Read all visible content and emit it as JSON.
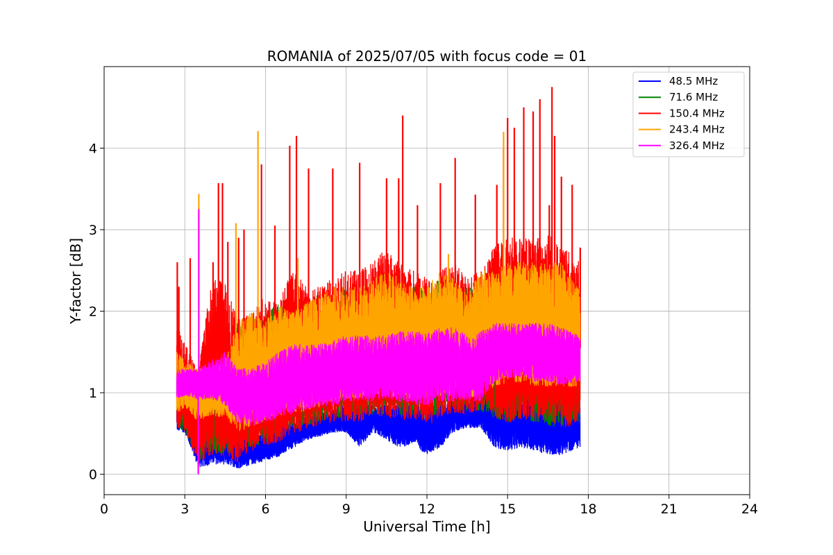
{
  "chart_data": {
    "type": "line",
    "title": "ROMANIA of 2025/07/05 with focus code = 01",
    "xlabel": "Universal Time [h]",
    "ylabel": "Y-factor [dB]",
    "xlim": [
      0,
      24
    ],
    "ylim": [
      -0.25,
      5.0
    ],
    "xticks": [
      "0",
      "3",
      "6",
      "9",
      "12",
      "15",
      "18",
      "21",
      "24"
    ],
    "yticks": [
      "0",
      "1",
      "2",
      "3",
      "4"
    ],
    "grid": true,
    "legend_position": "top-right",
    "series": [
      {
        "name": "  48.5 MHz",
        "color": "#0000ff",
        "x": [
          2.7,
          3.0,
          3.5,
          4.0,
          4.5,
          5.0,
          5.5,
          6.0,
          6.5,
          7.0,
          7.5,
          8.0,
          8.5,
          9.0,
          9.5,
          10.0,
          10.5,
          11.0,
          11.5,
          12.0,
          12.5,
          13.0,
          13.5,
          14.0,
          14.5,
          15.0,
          15.5,
          16.0,
          16.5,
          17.0,
          17.7
        ],
        "min": [
          0.5,
          0.5,
          0.05,
          0.1,
          0.1,
          0.05,
          0.1,
          0.15,
          0.2,
          0.3,
          0.4,
          0.45,
          0.5,
          0.5,
          0.3,
          0.5,
          0.4,
          0.3,
          0.35,
          0.2,
          0.3,
          0.5,
          0.55,
          0.55,
          0.3,
          0.25,
          0.3,
          0.25,
          0.2,
          0.2,
          0.3
        ],
        "max": [
          1.0,
          0.8,
          0.6,
          0.6,
          0.55,
          0.5,
          0.5,
          0.5,
          0.6,
          0.65,
          0.7,
          0.75,
          0.8,
          0.85,
          0.85,
          0.85,
          0.85,
          0.85,
          0.85,
          0.85,
          0.85,
          0.9,
          0.9,
          0.95,
          1.0,
          1.0,
          1.0,
          1.0,
          1.0,
          0.95,
          0.95
        ]
      },
      {
        "name": "  71.6 MHz",
        "color": "#008000",
        "x": [
          2.7,
          3.0,
          3.5,
          4.0,
          4.5,
          5.0,
          5.5,
          6.0,
          6.5,
          7.0,
          7.5,
          8.0,
          8.5,
          9.0,
          9.5,
          10.0,
          10.5,
          11.0,
          11.5,
          12.0,
          12.5,
          13.0,
          13.5,
          14.0,
          14.5,
          15.0,
          15.5,
          16.0,
          16.5,
          17.0,
          17.7
        ],
        "min": [
          0.5,
          0.5,
          0.1,
          0.2,
          0.2,
          0.2,
          0.25,
          0.3,
          0.35,
          0.45,
          0.5,
          0.55,
          0.6,
          0.6,
          0.6,
          0.65,
          0.65,
          0.6,
          0.65,
          0.6,
          0.65,
          0.7,
          0.7,
          0.7,
          0.6,
          0.55,
          0.6,
          0.55,
          0.5,
          0.5,
          0.55
        ],
        "max": [
          1.5,
          1.3,
          1.2,
          1.3,
          1.4,
          1.9,
          1.9,
          2.0,
          2.1,
          2.2,
          2.2,
          2.2,
          2.2,
          2.3,
          2.3,
          2.3,
          2.4,
          2.3,
          2.3,
          2.3,
          2.4,
          2.3,
          2.3,
          2.3,
          2.3,
          2.3,
          2.3,
          2.3,
          2.3,
          2.3,
          2.2
        ]
      },
      {
        "name": "  150.4 MHz",
        "color": "#ff0000",
        "x": [
          2.7,
          3.0,
          3.5,
          4.0,
          4.5,
          5.0,
          5.5,
          6.0,
          6.5,
          7.0,
          7.5,
          8.0,
          8.5,
          9.0,
          9.5,
          10.0,
          10.5,
          11.0,
          11.5,
          12.0,
          12.5,
          13.0,
          13.5,
          14.0,
          14.5,
          15.0,
          15.5,
          16.0,
          16.5,
          17.0,
          17.7
        ],
        "min": [
          0.45,
          0.45,
          0.1,
          0.1,
          0.1,
          0.05,
          0.2,
          0.25,
          0.3,
          0.4,
          0.45,
          0.5,
          0.55,
          0.55,
          0.55,
          0.6,
          0.6,
          0.55,
          0.6,
          0.5,
          0.6,
          0.65,
          0.65,
          0.7,
          0.6,
          0.5,
          0.55,
          0.5,
          0.5,
          0.45,
          0.5
        ],
        "max": [
          2.0,
          1.6,
          1.3,
          2.4,
          2.4,
          1.9,
          2.0,
          2.2,
          2.1,
          2.6,
          2.3,
          2.3,
          2.4,
          2.5,
          2.5,
          2.6,
          2.8,
          2.6,
          2.5,
          2.4,
          2.5,
          2.6,
          2.4,
          2.5,
          2.8,
          2.9,
          2.9,
          2.9,
          3.0,
          2.8,
          2.6
        ],
        "spikes": [
          [
            2.72,
            2.6
          ],
          [
            2.78,
            2.3
          ],
          [
            3.2,
            2.65
          ],
          [
            4.05,
            2.6
          ],
          [
            4.25,
            3.57
          ],
          [
            4.4,
            3.57
          ],
          [
            4.6,
            2.85
          ],
          [
            5.0,
            2.9
          ],
          [
            5.2,
            3.0
          ],
          [
            5.85,
            3.8
          ],
          [
            6.35,
            3.05
          ],
          [
            6.9,
            4.03
          ],
          [
            7.15,
            4.15
          ],
          [
            7.6,
            3.75
          ],
          [
            8.5,
            3.75
          ],
          [
            9.5,
            3.82
          ],
          [
            10.5,
            3.63
          ],
          [
            10.95,
            3.63
          ],
          [
            11.1,
            4.4
          ],
          [
            11.65,
            3.3
          ],
          [
            12.5,
            3.57
          ],
          [
            13.05,
            3.88
          ],
          [
            13.8,
            3.43
          ],
          [
            14.6,
            3.55
          ],
          [
            14.85,
            4.0
          ],
          [
            15.0,
            4.37
          ],
          [
            15.25,
            4.25
          ],
          [
            15.6,
            4.5
          ],
          [
            15.95,
            4.45
          ],
          [
            16.2,
            4.6
          ],
          [
            16.55,
            3.3
          ],
          [
            16.65,
            4.75
          ],
          [
            16.75,
            4.15
          ],
          [
            17.0,
            3.65
          ],
          [
            17.4,
            3.55
          ],
          [
            17.7,
            2.78
          ]
        ]
      },
      {
        "name": "  243.4 MHz",
        "color": "#ffa500",
        "x": [
          2.7,
          3.0,
          3.5,
          4.0,
          4.5,
          5.0,
          5.5,
          6.0,
          6.5,
          7.0,
          7.5,
          8.0,
          8.5,
          9.0,
          9.5,
          10.0,
          10.5,
          11.0,
          11.5,
          12.0,
          12.5,
          13.0,
          13.5,
          14.0,
          14.5,
          15.0,
          15.5,
          16.0,
          16.5,
          17.0,
          17.7
        ],
        "min": [
          0.7,
          0.8,
          0.6,
          0.7,
          0.65,
          0.45,
          0.5,
          0.6,
          0.65,
          0.7,
          0.7,
          0.75,
          0.8,
          0.85,
          0.85,
          0.9,
          0.9,
          0.85,
          0.85,
          0.85,
          0.85,
          0.9,
          0.85,
          0.9,
          1.0,
          1.05,
          1.05,
          1.0,
          1.0,
          1.0,
          1.0
        ],
        "max": [
          1.5,
          1.4,
          1.3,
          1.3,
          1.4,
          1.9,
          2.0,
          1.9,
          2.1,
          2.0,
          2.1,
          2.2,
          2.3,
          2.3,
          2.3,
          2.4,
          2.5,
          2.4,
          2.3,
          2.3,
          2.5,
          2.4,
          2.2,
          2.5,
          2.5,
          2.6,
          2.6,
          2.6,
          2.6,
          2.6,
          2.3
        ],
        "spikes": [
          [
            3.52,
            3.44
          ],
          [
            4.9,
            3.08
          ],
          [
            5.72,
            4.21
          ],
          [
            7.2,
            2.65
          ],
          [
            12.8,
            2.7
          ],
          [
            14.85,
            4.2
          ]
        ]
      },
      {
        "name": "  326.4 MHz",
        "color": "#ff00ff",
        "x": [
          2.7,
          3.0,
          3.5,
          4.0,
          4.5,
          5.0,
          5.5,
          6.0,
          6.5,
          7.0,
          7.5,
          8.0,
          8.5,
          9.0,
          9.5,
          10.0,
          10.5,
          11.0,
          11.5,
          12.0,
          12.5,
          13.0,
          13.5,
          14.0,
          14.5,
          15.0,
          15.5,
          16.0,
          16.5,
          17.0,
          17.7
        ],
        "min": [
          0.9,
          0.95,
          0.9,
          0.9,
          0.8,
          0.6,
          0.55,
          0.6,
          0.65,
          0.7,
          0.75,
          0.8,
          0.8,
          0.85,
          0.85,
          0.85,
          0.9,
          0.85,
          0.8,
          0.8,
          0.85,
          0.85,
          0.85,
          0.85,
          1.1,
          1.15,
          1.15,
          1.1,
          1.1,
          1.05,
          1.1
        ],
        "max": [
          1.3,
          1.3,
          1.3,
          1.4,
          1.5,
          1.3,
          1.3,
          1.4,
          1.5,
          1.6,
          1.6,
          1.6,
          1.65,
          1.7,
          1.7,
          1.7,
          1.7,
          1.75,
          1.75,
          1.75,
          1.8,
          1.8,
          1.7,
          1.75,
          1.85,
          1.85,
          1.85,
          1.85,
          1.85,
          1.8,
          1.7
        ],
        "spikes": [
          [
            3.52,
            3.25
          ],
          [
            3.5,
            0.0
          ]
        ]
      }
    ]
  }
}
